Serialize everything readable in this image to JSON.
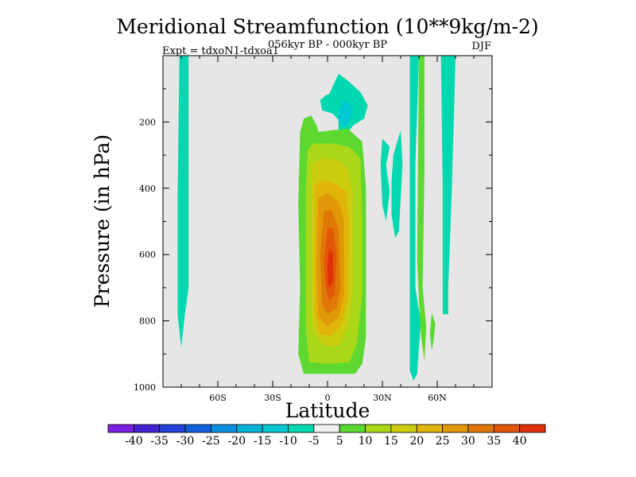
{
  "chart_data": {
    "type": "heatmap",
    "title": "Meridional Streamfunction (10**9kg/m-2)",
    "subtitle": "056kyr BP - 000kyr BP",
    "left_label": "Expt = tdxoN1-tdxoa1",
    "right_label": "DJF",
    "xlabel": "Latitude",
    "ylabel": "Pressure (in hPa)",
    "xlim": [
      -90,
      90
    ],
    "ylim": [
      1000,
      0
    ],
    "x_ticks": [
      {
        "value": -60,
        "label": "60S"
      },
      {
        "value": -30,
        "label": "30S"
      },
      {
        "value": 0,
        "label": "0"
      },
      {
        "value": 30,
        "label": "30N"
      },
      {
        "value": 60,
        "label": "60N"
      }
    ],
    "y_ticks": [
      {
        "value": 200,
        "label": "200"
      },
      {
        "value": 400,
        "label": "400"
      },
      {
        "value": 600,
        "label": "600"
      },
      {
        "value": 800,
        "label": "800"
      },
      {
        "value": 1000,
        "label": "1000"
      }
    ],
    "background_color": "#e6e6e6",
    "colorbar": {
      "colors": [
        "#7d1fe0",
        "#4020cf",
        "#2240d6",
        "#1060dc",
        "#0a8ee0",
        "#00b4d8",
        "#00c8d0",
        "#00d8b0",
        "#f0f0f0",
        "#5cd830",
        "#a8d818",
        "#cccc10",
        "#e0b408",
        "#e09808",
        "#e07808",
        "#e05808",
        "#e03008"
      ],
      "labels": [
        "-40",
        "-35",
        "-30",
        "-25",
        "-20",
        "-15",
        "-10",
        "-5",
        "5",
        "10",
        "15",
        "20",
        "25",
        "30",
        "35",
        "40"
      ]
    },
    "features": [
      {
        "name": "sh-high-lat-negative",
        "level": "-5",
        "color": "#00d8b0",
        "outline": [
          [
            -81,
            0
          ],
          [
            -76,
            0
          ],
          [
            -76,
            700
          ],
          [
            -78,
            780
          ],
          [
            -80,
            880
          ],
          [
            -82,
            780
          ],
          [
            -82,
            450
          ],
          [
            -81,
            0
          ]
        ]
      },
      {
        "name": "upper-trop-negative-outer",
        "level": "-5",
        "color": "#00d8b0",
        "outline": [
          [
            1,
            115
          ],
          [
            6,
            55
          ],
          [
            11,
            75
          ],
          [
            18,
            110
          ],
          [
            22,
            150
          ],
          [
            20,
            190
          ],
          [
            14,
            210
          ],
          [
            10,
            240
          ],
          [
            6,
            230
          ],
          [
            6,
            195
          ],
          [
            3,
            175
          ],
          [
            -3,
            165
          ],
          [
            -4,
            135
          ],
          [
            -1,
            120
          ],
          [
            1,
            115
          ]
        ]
      },
      {
        "name": "upper-trop-negative-inner",
        "level": "-10",
        "color": "#00c8d0",
        "outline": [
          [
            6,
            170
          ],
          [
            8,
            140
          ],
          [
            11,
            135
          ],
          [
            14,
            165
          ],
          [
            12,
            200
          ],
          [
            9,
            215
          ],
          [
            6,
            200
          ],
          [
            6,
            170
          ]
        ]
      },
      {
        "name": "nh-midlat-negative-a",
        "level": "-5",
        "color": "#00d8b0",
        "outline": [
          [
            30,
            250
          ],
          [
            34,
            275
          ],
          [
            32,
            330
          ],
          [
            34,
            410
          ],
          [
            32,
            500
          ],
          [
            30,
            450
          ],
          [
            29,
            330
          ],
          [
            30,
            250
          ]
        ]
      },
      {
        "name": "nh-midlat-negative-b",
        "level": "-5",
        "color": "#00d8b0",
        "outline": [
          [
            36,
            300
          ],
          [
            40,
            225
          ],
          [
            41,
            330
          ],
          [
            40,
            430
          ],
          [
            39,
            530
          ],
          [
            37,
            550
          ],
          [
            35,
            480
          ],
          [
            35,
            380
          ],
          [
            36,
            300
          ]
        ]
      },
      {
        "name": "nh-50n-negative",
        "level": "-5",
        "color": "#00d8b0",
        "outline": [
          [
            45,
            0
          ],
          [
            50,
            0
          ],
          [
            48,
            330
          ],
          [
            48,
            700
          ],
          [
            51,
            800
          ],
          [
            49,
            960
          ],
          [
            47,
            980
          ],
          [
            45,
            950
          ],
          [
            45,
            0
          ]
        ]
      },
      {
        "name": "nh-50n-positive",
        "level": "5",
        "color": "#5cd830",
        "outline": [
          [
            50,
            0
          ],
          [
            53,
            0
          ],
          [
            53,
            350
          ],
          [
            52,
            700
          ],
          [
            54,
            820
          ],
          [
            53,
            920
          ],
          [
            51,
            840
          ],
          [
            49,
            620
          ],
          [
            50,
            0
          ]
        ]
      },
      {
        "name": "nh-60n-positive-small",
        "level": "5",
        "color": "#5cd830",
        "outline": [
          [
            57,
            775
          ],
          [
            59,
            810
          ],
          [
            58,
            860
          ],
          [
            57,
            890
          ],
          [
            56,
            840
          ],
          [
            57,
            775
          ]
        ]
      },
      {
        "name": "nh-high-lat-negative",
        "level": "-5",
        "color": "#00d8b0",
        "outline": [
          [
            62,
            0
          ],
          [
            70,
            0
          ],
          [
            68,
            400
          ],
          [
            66,
            700
          ],
          [
            66,
            780
          ],
          [
            63,
            780
          ],
          [
            63,
            400
          ],
          [
            62,
            0
          ]
        ]
      },
      {
        "name": "tropical-cell-5",
        "level": "5",
        "color": "#5cd830",
        "outline": [
          [
            -15,
            230
          ],
          [
            -13,
            190
          ],
          [
            -9,
            180
          ],
          [
            -6,
            210
          ],
          [
            -5,
            230
          ],
          [
            11,
            220
          ],
          [
            19,
            260
          ],
          [
            21,
            400
          ],
          [
            21,
            600
          ],
          [
            21,
            850
          ],
          [
            19,
            930
          ],
          [
            15,
            960
          ],
          [
            0,
            960
          ],
          [
            -13,
            960
          ],
          [
            -16,
            900
          ],
          [
            -15,
            700
          ],
          [
            -16,
            450
          ],
          [
            -15,
            230
          ]
        ]
      },
      {
        "name": "tropical-cell-10",
        "level": "10",
        "color": "#a8d818",
        "outline": [
          [
            -11,
            285
          ],
          [
            -8,
            265
          ],
          [
            3,
            265
          ],
          [
            12,
            275
          ],
          [
            18,
            310
          ],
          [
            19,
            480
          ],
          [
            19,
            720
          ],
          [
            16,
            870
          ],
          [
            12,
            925
          ],
          [
            0,
            930
          ],
          [
            -10,
            925
          ],
          [
            -12,
            820
          ],
          [
            -12,
            600
          ],
          [
            -12,
            420
          ],
          [
            -11,
            285
          ]
        ]
      },
      {
        "name": "tropical-cell-15",
        "level": "15",
        "color": "#cccc10",
        "outline": [
          [
            -9,
            330
          ],
          [
            -4,
            310
          ],
          [
            4,
            310
          ],
          [
            11,
            335
          ],
          [
            14,
            420
          ],
          [
            14,
            700
          ],
          [
            11,
            820
          ],
          [
            6,
            875
          ],
          [
            -2,
            875
          ],
          [
            -8,
            830
          ],
          [
            -9,
            700
          ],
          [
            -9,
            480
          ],
          [
            -9,
            330
          ]
        ]
      },
      {
        "name": "tropical-cell-20",
        "level": "20",
        "color": "#e0b408",
        "outline": [
          [
            -7,
            390
          ],
          [
            -2,
            375
          ],
          [
            4,
            385
          ],
          [
            10,
            410
          ],
          [
            12,
            520
          ],
          [
            11,
            740
          ],
          [
            8,
            810
          ],
          [
            2,
            845
          ],
          [
            -4,
            840
          ],
          [
            -7,
            780
          ],
          [
            -7,
            560
          ],
          [
            -7,
            390
          ]
        ]
      },
      {
        "name": "tropical-cell-25",
        "level": "25",
        "color": "#e09808",
        "outline": [
          [
            -5,
            430
          ],
          [
            0,
            415
          ],
          [
            6,
            440
          ],
          [
            9,
            500
          ],
          [
            9,
            720
          ],
          [
            6,
            790
          ],
          [
            0,
            815
          ],
          [
            -5,
            790
          ],
          [
            -6,
            640
          ],
          [
            -5,
            430
          ]
        ]
      },
      {
        "name": "tropical-cell-30",
        "level": "30",
        "color": "#e07808",
        "outline": [
          [
            -2,
            470
          ],
          [
            2,
            465
          ],
          [
            6,
            520
          ],
          [
            7,
            700
          ],
          [
            5,
            760
          ],
          [
            0,
            780
          ],
          [
            -3,
            750
          ],
          [
            -4,
            600
          ],
          [
            -2,
            470
          ]
        ]
      },
      {
        "name": "tropical-cell-35",
        "level": "35",
        "color": "#e05808",
        "outline": [
          [
            0,
            520
          ],
          [
            3,
            520
          ],
          [
            5,
            600
          ],
          [
            4,
            720
          ],
          [
            1,
            740
          ],
          [
            -1,
            700
          ],
          [
            -2,
            620
          ],
          [
            0,
            520
          ]
        ]
      },
      {
        "name": "tropical-cell-40",
        "level": "40",
        "color": "#e03008",
        "outline": [
          [
            1,
            580
          ],
          [
            3,
            600
          ],
          [
            3,
            680
          ],
          [
            1,
            700
          ],
          [
            0,
            680
          ],
          [
            0,
            620
          ],
          [
            1,
            580
          ]
        ]
      }
    ]
  }
}
